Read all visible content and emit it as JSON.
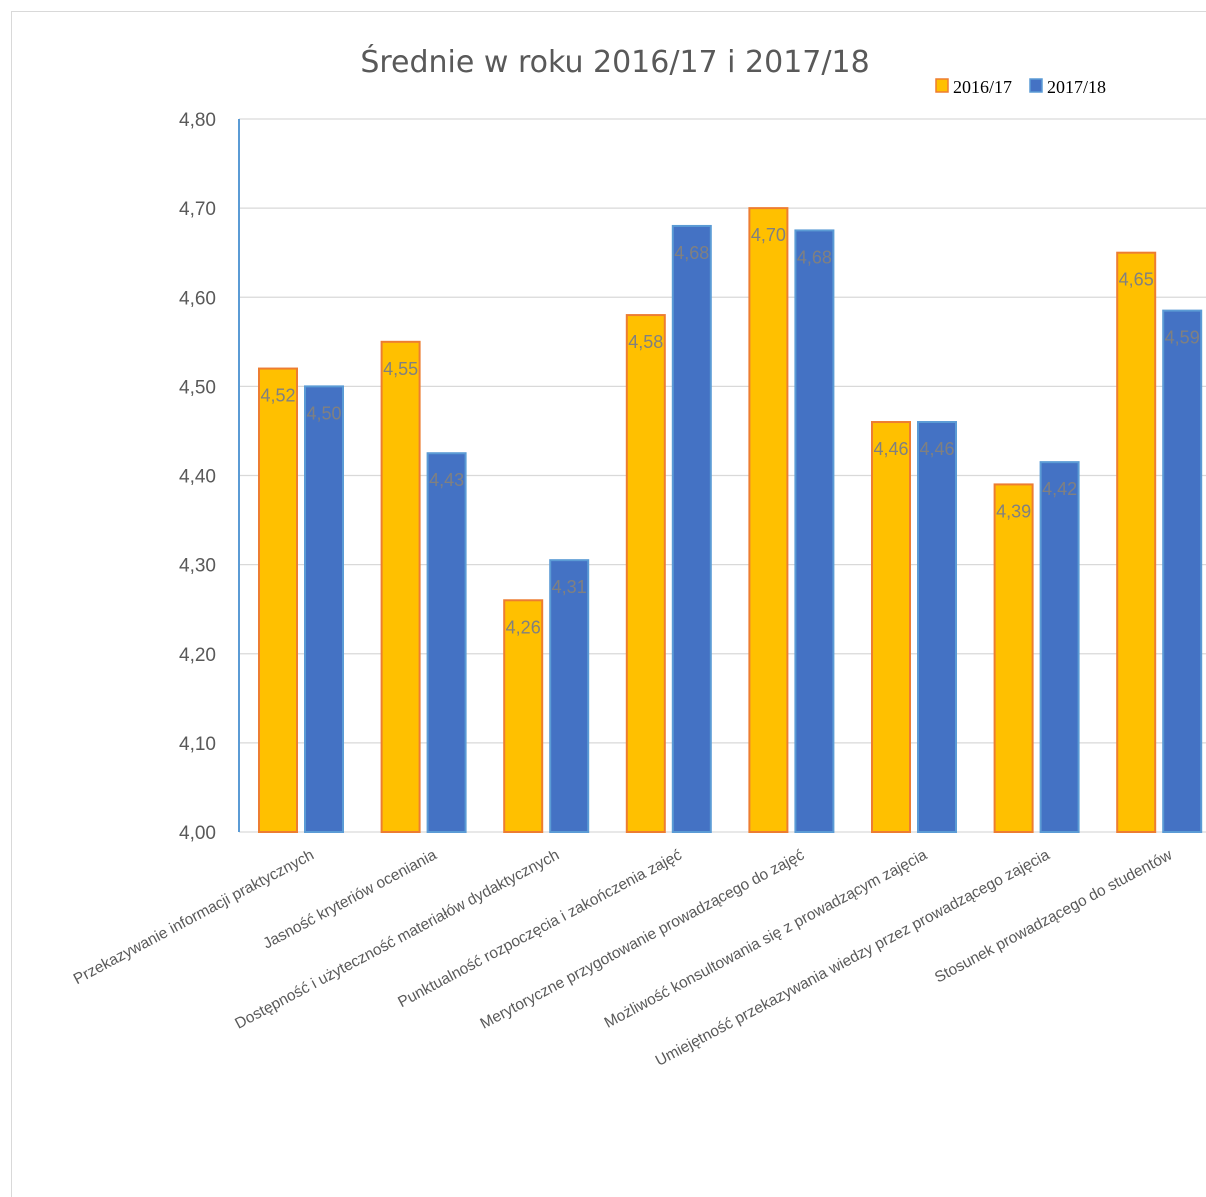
{
  "chart_data": {
    "type": "bar",
    "title": "Średnie  w roku 2016/17 i 2017/18",
    "xlabel": "",
    "ylabel": "",
    "ylim": [
      4.0,
      4.8
    ],
    "yticks": [
      "4,00",
      "4,10",
      "4,20",
      "4,30",
      "4,40",
      "4,50",
      "4,60",
      "4,70",
      "4,80"
    ],
    "grid": true,
    "legend_position": "top-right",
    "categories": [
      "Przekazywanie informacji praktycznych",
      "Jasność kryteriów oceniania",
      "Dostępność i użyteczność materiałów dydaktycznych",
      "Punktualność rozpoczęcia i zakończenia zajęć",
      "Merytoryczne przygotowanie prowadzącego do zajęć",
      "Możliwość konsultowania się z prowadzącym zajęcia",
      "Umiejętność przekazywania wiedzy przez prowadzącego zajęcia",
      "Stosunek prowadzącego do studentów"
    ],
    "series": [
      {
        "name": "2016/17",
        "color": "#FFC000",
        "border": "#ED7D31",
        "values": [
          4.52,
          4.55,
          4.26,
          4.58,
          4.7,
          4.46,
          4.39,
          4.65
        ],
        "labels": [
          "4,52",
          "4,55",
          "4,26",
          "4,58",
          "4,70",
          "4,46",
          "4,39",
          "4,65"
        ]
      },
      {
        "name": "2017/18",
        "color": "#4472C4",
        "border": "#5B9BD5",
        "values": [
          4.5,
          4.425,
          4.305,
          4.68,
          4.675,
          4.46,
          4.415,
          4.585
        ],
        "labels": [
          "4,50",
          "4,43",
          "4,31",
          "4,68",
          "4,68",
          "4,46",
          "4,42",
          "4,59"
        ]
      }
    ]
  }
}
